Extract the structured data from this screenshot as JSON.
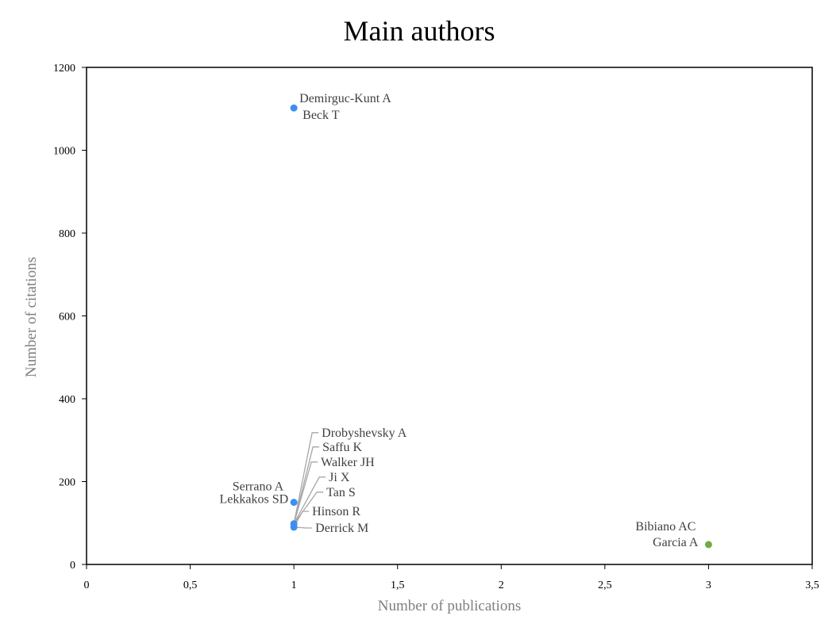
{
  "chart_data": {
    "type": "scatter",
    "title": "Main authors",
    "xlabel": "Number of publications",
    "ylabel": "Number of citations",
    "xlim": [
      0,
      3.5
    ],
    "ylim": [
      0,
      1200
    ],
    "xticks": [
      0,
      0.5,
      1,
      1.5,
      2,
      2.5,
      3,
      3.5
    ],
    "xtick_labels": [
      "0",
      "0,5",
      "1",
      "1,5",
      "2",
      "2,5",
      "3",
      "3,5"
    ],
    "yticks": [
      0,
      200,
      400,
      600,
      800,
      1000,
      1200
    ],
    "ytick_labels": [
      "0",
      "200",
      "400",
      "600",
      "800",
      "1000",
      "1200"
    ],
    "grid": false,
    "colors": {
      "blue": "#3d8fef",
      "green": "#70ad47",
      "leader": "#a6a6a6"
    },
    "points": [
      {
        "x": 1,
        "y": 1102,
        "color": "blue",
        "labels": [
          "Demirguc-Kunt  A",
          "Beck T"
        ]
      },
      {
        "x": 1,
        "y": 150,
        "color": "blue",
        "labels": [
          "Serrano A",
          "Lekkakos SD"
        ]
      },
      {
        "x": 1,
        "y": 98,
        "color": "blue",
        "labels": [
          "Drobyshevsky A",
          "Saffu K",
          "Walker JH",
          "Ji X",
          "Tan S"
        ]
      },
      {
        "x": 1,
        "y": 90,
        "color": "blue",
        "labels": [
          "Hinson R",
          "Derrick M"
        ]
      },
      {
        "x": 3,
        "y": 48,
        "color": "green",
        "labels": [
          "Bibiano  AC",
          "Garcia A"
        ]
      }
    ]
  }
}
